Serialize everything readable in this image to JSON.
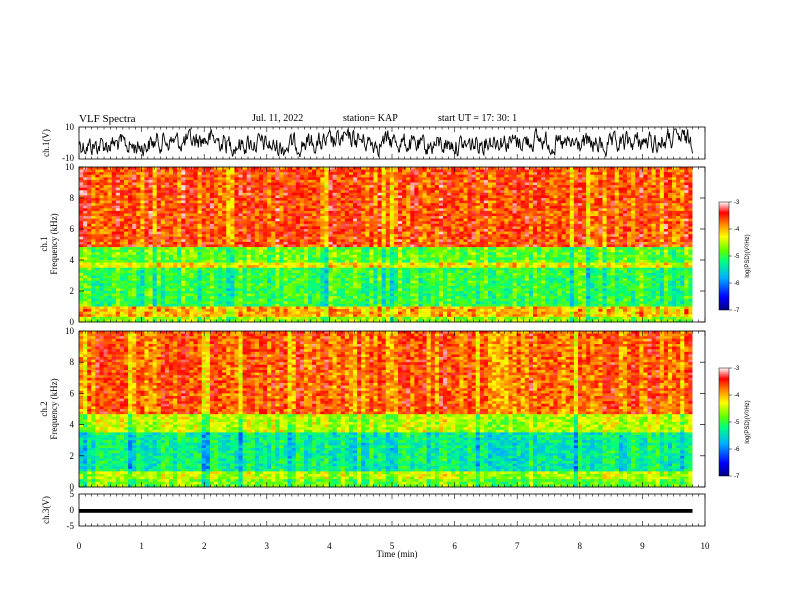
{
  "header": {
    "title": "VLF Spectra",
    "date": "Jul. 11, 2022",
    "station": "station= KAP",
    "start": "start UT = 17: 30: 1"
  },
  "chart_data": [
    {
      "type": "line",
      "ylabel": "ch.1(V)",
      "ylim": [
        -10,
        10
      ],
      "yticks": [
        "10",
        "-10"
      ],
      "xlim": [
        0,
        10
      ],
      "series_extent_min": 9.8,
      "description_color": "#000000"
    },
    {
      "type": "heatmap",
      "ylabel_line1": "ch.1",
      "ylabel_line2": "Frequency (kHz)",
      "xlim": [
        0,
        10
      ],
      "ylim": [
        0,
        10
      ],
      "yticks": [
        "0",
        "2",
        "4",
        "6",
        "8",
        "10"
      ],
      "colorbar": {
        "label": "log(PSD)(V²/Hz)",
        "ticks": [
          "-3",
          "-4",
          "-5",
          "-6",
          "-7"
        ],
        "range": [
          -7,
          -3
        ]
      },
      "bands": [
        {
          "from": 0.0,
          "to": 0.4,
          "level": -4.6
        },
        {
          "from": 0.4,
          "to": 1.0,
          "level": -4.0
        },
        {
          "from": 1.0,
          "to": 3.5,
          "level": -5.0
        },
        {
          "from": 3.5,
          "to": 3.8,
          "level": -4.2
        },
        {
          "from": 3.8,
          "to": 4.8,
          "level": -4.8
        },
        {
          "from": 4.8,
          "to": 10.0,
          "level": -3.6
        }
      ]
    },
    {
      "type": "heatmap",
      "ylabel_line1": "ch.2",
      "ylabel_line2": "Frequency (kHz)",
      "xlim": [
        0,
        10
      ],
      "ylim": [
        0,
        10
      ],
      "yticks": [
        "0",
        "2",
        "4",
        "6",
        "8",
        "10"
      ],
      "colorbar": {
        "label": "log(PSD)(V²/Hz)",
        "ticks": [
          "-3",
          "-4",
          "-5",
          "-6",
          "-7"
        ],
        "range": [
          -7,
          -3
        ]
      },
      "bands": [
        {
          "from": 0.0,
          "to": 0.5,
          "level": -4.8
        },
        {
          "from": 0.5,
          "to": 1.0,
          "level": -4.5
        },
        {
          "from": 1.0,
          "to": 3.5,
          "level": -5.3
        },
        {
          "from": 3.5,
          "to": 4.7,
          "level": -4.5
        },
        {
          "from": 4.7,
          "to": 10.0,
          "level": -3.7
        }
      ]
    },
    {
      "type": "line",
      "ylabel": "ch.3(V)",
      "ylim": [
        -5,
        5
      ],
      "yticks": [
        "5",
        "0",
        "-5"
      ],
      "xlim": [
        0,
        10
      ],
      "xticks": [
        "0",
        "1",
        "2",
        "3",
        "4",
        "5",
        "6",
        "7",
        "8",
        "9",
        "10"
      ],
      "xlabel": "Time (min)",
      "trace_level": -0.3,
      "trace_band": [
        -0.9,
        0.3
      ]
    }
  ]
}
